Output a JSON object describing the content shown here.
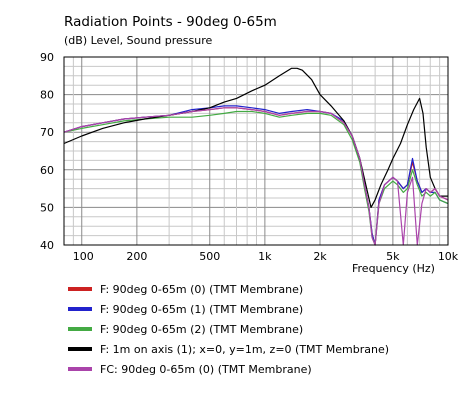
{
  "chart_data": {
    "type": "line",
    "title": "Radiation Points - 90deg 0-65m",
    "subtitle": "(dB)  Level, Sound pressure",
    "xlabel": "Frequency  (Hz)",
    "x_scale": "log",
    "xlim": [
      80,
      10000
    ],
    "ylim": [
      40,
      90
    ],
    "y_ticks": [
      "90",
      "80",
      "70",
      "60",
      "50",
      "40"
    ],
    "y_tick_values": [
      90,
      80,
      70,
      60,
      50,
      40
    ],
    "x_ticks": [
      "100",
      "200",
      "500",
      "1k",
      "2k",
      "5k",
      "10k"
    ],
    "x_tick_values": [
      100,
      200,
      500,
      1000,
      2000,
      5000,
      10000
    ],
    "grid": true,
    "legend_position": "bottom",
    "series": [
      {
        "name": "F: 90deg 0-65m (0)  (TMT Membrane)",
        "color": "#cc2222",
        "x": [
          80,
          100,
          130,
          170,
          220,
          300,
          400,
          500,
          600,
          700,
          850,
          1000,
          1200,
          1400,
          1700,
          2000,
          2300,
          2700,
          3000,
          3300,
          3500,
          3700,
          3850,
          4000,
          4200,
          4500,
          5000,
          5300,
          5700,
          6000,
          6400,
          6800,
          7200,
          7600,
          8000,
          8500,
          9000,
          10000
        ],
        "y": [
          70,
          71.5,
          72.5,
          73.5,
          74,
          74.5,
          75.5,
          76,
          76.5,
          76.5,
          76,
          75.5,
          74.5,
          75,
          75.5,
          75.5,
          75,
          72.5,
          69,
          63,
          56,
          50,
          43,
          40,
          52,
          56,
          58,
          57,
          55,
          56,
          62,
          57,
          54,
          55,
          54,
          55,
          53,
          52
        ]
      },
      {
        "name": "F: 90deg 0-65m (1)  (TMT Membrane)",
        "color": "#2222cc",
        "x": [
          80,
          100,
          130,
          170,
          220,
          300,
          400,
          500,
          600,
          700,
          850,
          1000,
          1200,
          1400,
          1700,
          2000,
          2300,
          2700,
          3000,
          3300,
          3500,
          3700,
          3850,
          4000,
          4200,
          4500,
          5000,
          5300,
          5700,
          6000,
          6400,
          6800,
          7200,
          7600,
          8000,
          8500,
          9000,
          10000
        ],
        "y": [
          70,
          71.5,
          72.5,
          73.5,
          74,
          74.5,
          76,
          76.5,
          77,
          77,
          76.5,
          76,
          75,
          75.5,
          76,
          75.5,
          75,
          73,
          69,
          63,
          56,
          50,
          43,
          40,
          52,
          56,
          58,
          57,
          55,
          56,
          63,
          57,
          54,
          55,
          54,
          54,
          52,
          51
        ]
      },
      {
        "name": "F: 90deg 0-65m (2)  (TMT Membrane)",
        "color": "#44aa44",
        "x": [
          80,
          100,
          130,
          170,
          220,
          300,
          400,
          500,
          600,
          700,
          850,
          1000,
          1200,
          1400,
          1700,
          2000,
          2300,
          2700,
          3000,
          3300,
          3500,
          3700,
          3850,
          4000,
          4200,
          4500,
          5000,
          5300,
          5700,
          6000,
          6400,
          6800,
          7200,
          7600,
          8000,
          8500,
          9000,
          10000
        ],
        "y": [
          70,
          71,
          72,
          73,
          73.5,
          74,
          74,
          74.5,
          75,
          75.5,
          75.5,
          75,
          74,
          74.5,
          75,
          75,
          74.5,
          72,
          68,
          62,
          55,
          49,
          42,
          40,
          51,
          55,
          57,
          56,
          54,
          55,
          60,
          56,
          53,
          54,
          53,
          54,
          52,
          51
        ]
      },
      {
        "name": "F: 1m on axis (1); x=0, y=1m, z=0  (TMT Membrane)",
        "color": "#000000",
        "x": [
          80,
          100,
          130,
          170,
          220,
          300,
          400,
          500,
          600,
          700,
          850,
          1000,
          1200,
          1400,
          1500,
          1600,
          1800,
          2000,
          2300,
          2700,
          3000,
          3300,
          3600,
          3800,
          4000,
          4300,
          4700,
          5000,
          5500,
          6000,
          6500,
          7000,
          7300,
          7600,
          8000,
          8500,
          9000,
          10000
        ],
        "y": [
          67,
          69,
          71,
          72.5,
          73.5,
          74.5,
          75.5,
          76.5,
          78,
          79,
          81,
          82.5,
          85,
          87,
          87,
          86.5,
          84,
          80,
          77,
          73,
          69,
          63,
          55,
          50,
          52,
          56,
          60,
          63,
          67,
          72,
          76,
          79,
          75,
          66,
          58,
          55,
          53,
          53
        ]
      },
      {
        "name": "FC: 90deg 0-65m (0)  (TMT Membrane)",
        "color": "#aa44aa",
        "x": [
          80,
          100,
          130,
          170,
          220,
          300,
          400,
          500,
          600,
          700,
          850,
          1000,
          1200,
          1400,
          1700,
          2000,
          2300,
          2700,
          3000,
          3300,
          3500,
          3700,
          3850,
          4000,
          4200,
          4500,
          5000,
          5300,
          5700,
          6000,
          6400,
          6800,
          7200,
          7600,
          8000,
          8500,
          9000,
          10000
        ],
        "y": [
          70,
          71.5,
          72.5,
          73.5,
          74,
          74.5,
          75.5,
          76,
          76.5,
          76.5,
          76,
          75.5,
          74.5,
          75,
          75.5,
          75.5,
          75,
          72.5,
          69,
          63,
          56,
          50,
          42,
          40,
          51,
          56,
          58,
          57,
          40,
          54,
          58,
          40,
          51,
          55,
          54,
          55,
          53,
          52
        ]
      }
    ]
  }
}
